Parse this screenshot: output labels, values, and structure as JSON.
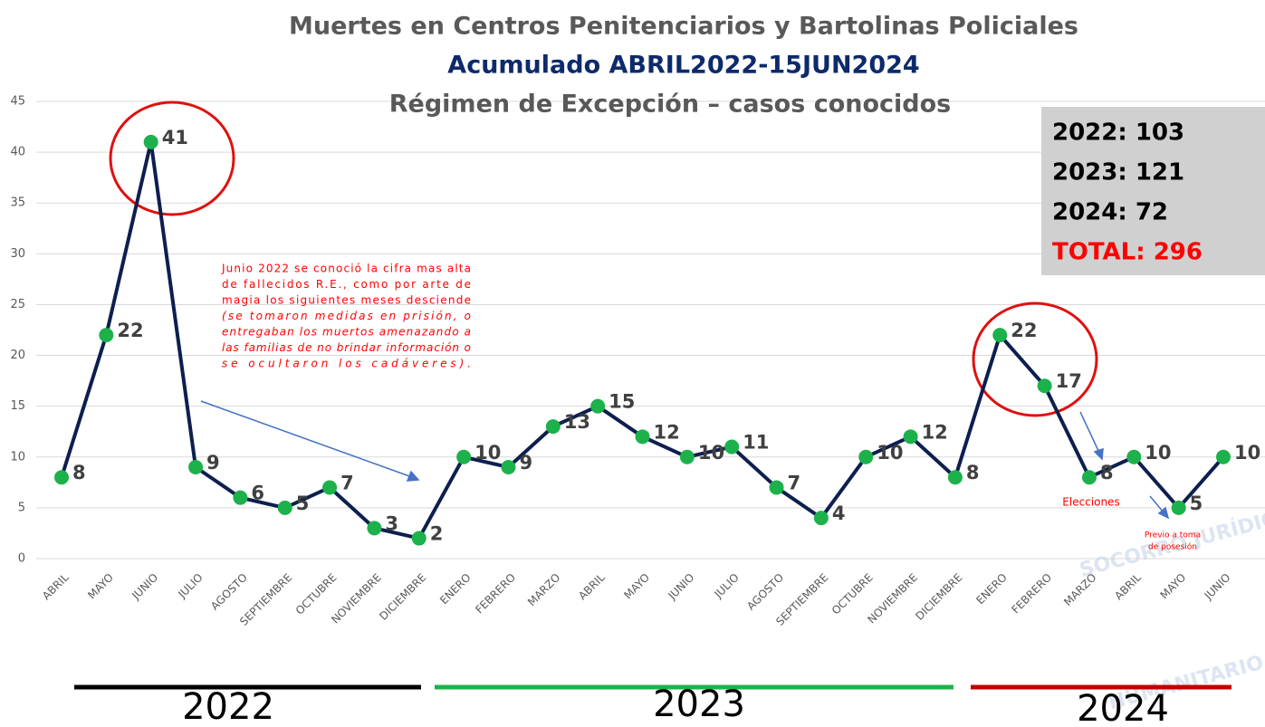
{
  "chart_data": {
    "type": "line",
    "title": "Muertes en Centros Penitenciarios y Bartolinas Policiales",
    "subtitle": "Acumulado ABRIL2022-15JUN2024",
    "subtitle2": "Régimen de Excepción – casos conocidos",
    "categories": [
      "ABRIL",
      "MAYO",
      "JUNIO",
      "JULIO",
      "AGOSTO",
      "SEPTIEMBRE",
      "OCTUBRE",
      "NOVIEMBRE",
      "DICIEMBRE",
      "ENERO",
      "FEBRERO",
      "MARZO",
      "ABRIL",
      "MAYO",
      "JUNIO",
      "JULIO",
      "AGOSTO",
      "SEPTIEMBRE",
      "OCTUBRE",
      "NOVIEMBRE",
      "DICIEMBRE",
      "ENERO",
      "FEBRERO",
      "MARZO",
      "ABRIL",
      "MAYO",
      "JUNIO"
    ],
    "series": [
      {
        "name": "Muertes",
        "color": "#0d1f4f",
        "marker_color": "#1db14b",
        "values": [
          8,
          22,
          41,
          9,
          6,
          5,
          7,
          3,
          2,
          10,
          9,
          13,
          15,
          12,
          10,
          11,
          7,
          4,
          10,
          12,
          8,
          22,
          17,
          8,
          10,
          5,
          10
        ]
      }
    ],
    "ylim": [
      0,
      45
    ],
    "yticks": [
      0,
      5,
      10,
      15,
      20,
      25,
      30,
      35,
      40,
      45
    ],
    "grid": true,
    "years": [
      "2022",
      "2023",
      "2024"
    ],
    "summary": [
      "2022: 103",
      "2023: 121",
      "2024: 72",
      "TOTAL: 296"
    ],
    "annotation": [
      "Junio 2022 se conoció la cifra mas alta",
      "de fallecidos R.E., como por arte de",
      "magia los siguientes meses desciende",
      "(se tomaron medidas en prisión, o",
      "entregaban los muertos amenazando a",
      "las familias de no brindar información o",
      "se ocultaron los  cadáveres)."
    ],
    "note_elecciones": "Elecciones",
    "note_posesion": [
      "Previo a toma",
      "de posesión"
    ],
    "watermark": [
      "SOCORRO JURÍDICO",
      "HUMANITARIO"
    ]
  }
}
